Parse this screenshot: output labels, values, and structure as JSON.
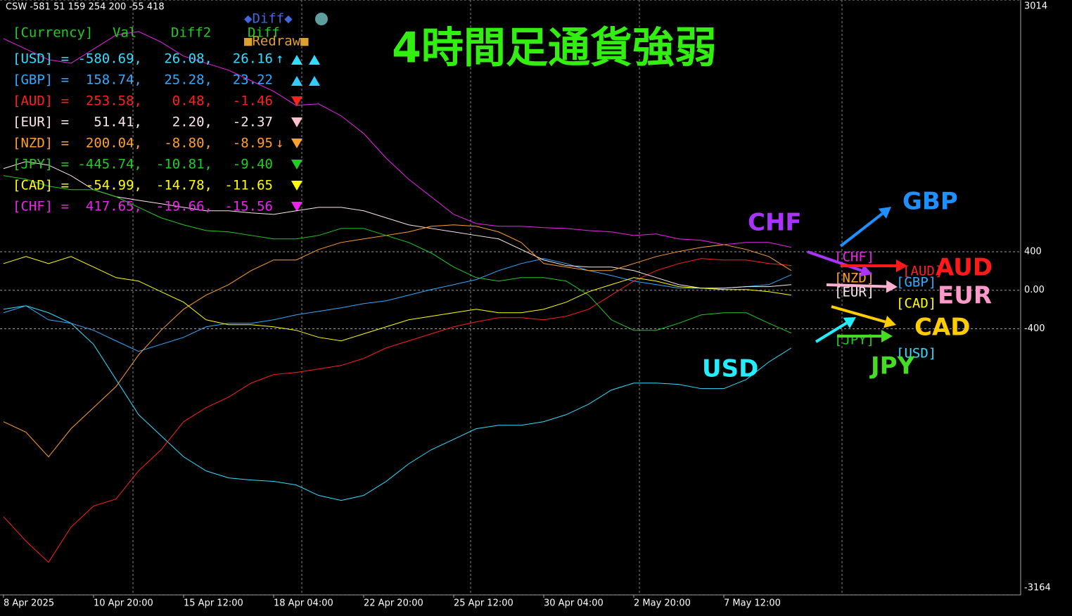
{
  "chart_data": {
    "type": "line",
    "info": "CSW -581 51 159 254 200 -55 418",
    "title": "4時間足通貨強弱",
    "buttons": {
      "diff": "◆Diff◆",
      "redraw": "■Redraw■"
    },
    "table": {
      "header": [
        "[Currency]",
        "Val",
        "Diff2",
        "Diff"
      ],
      "rows": [
        {
          "color": "#33ddff",
          "label": "[USD] =",
          "val": "-580.69,",
          "diff2": "26.08,",
          "diff": "26.16",
          "trend": "↑"
        },
        {
          "color": "#33aaff",
          "label": "[GBP] =",
          "val": "158.74,",
          "diff2": "25.28,",
          "diff": "23.22"
        },
        {
          "color": "#ff2020",
          "label": "[AUD] =",
          "val": "253.58,",
          "diff2": "0.48,",
          "diff": "-1.46"
        },
        {
          "color": "#ffe6ea",
          "label": "[EUR] =",
          "val": "51.41,",
          "diff2": "2.20,",
          "diff": "-2.37"
        },
        {
          "color": "#ff9f2f",
          "label": "[NZD] =",
          "val": "200.04,",
          "diff2": "-8.80,",
          "diff": "-8.95",
          "trend": "↓"
        },
        {
          "color": "#22cc22",
          "label": "[JPY] =",
          "val": "-445.74,",
          "diff2": "-10.81,",
          "diff": "-9.40"
        },
        {
          "color": "#ffff00",
          "label": "[CAD] =",
          "val": "-54.99,",
          "diff2": "-14.78,",
          "diff": "-11.65"
        },
        {
          "color": "#ee22ee",
          "label": "[CHF] =",
          "val": "417.65,",
          "diff2": "-19.66,",
          "diff": "-15.56"
        }
      ]
    },
    "categories": [
      "8 Apr 2025",
      null,
      null,
      null,
      "10 Apr 20:00",
      null,
      null,
      null,
      "15 Apr 12:00",
      null,
      null,
      null,
      "18 Apr 04:00",
      null,
      null,
      null,
      "22 Apr 20:00",
      null,
      null,
      null,
      "25 Apr 12:00",
      null,
      null,
      null,
      "30 Apr 04:00",
      null,
      null,
      null,
      "2 May 20:00",
      null,
      null,
      null,
      "7 May 12:00",
      null,
      null,
      null
    ],
    "ylim": [
      -3164,
      3014
    ],
    "yticks": [
      3014,
      400,
      {
        "value": 0,
        "label": "0.00"
      },
      -400,
      -3164
    ],
    "grid": true,
    "series": [
      {
        "name": "[USD]",
        "color": "#33ddff",
        "values": [
          -197,
          -161,
          -234,
          -343,
          -562,
          -927,
          -1292,
          -1511,
          -1730,
          -1876,
          -1949,
          -1971,
          -1985,
          -2022,
          -2131,
          -2183,
          -2131,
          -1985,
          -1803,
          -1657,
          -1548,
          -1438,
          -1402,
          -1402,
          -1365,
          -1292,
          -1183,
          -1037,
          -964,
          -964,
          -978,
          -1022,
          -1022,
          -927,
          -745,
          -599
        ]
      },
      {
        "name": "[GBP]",
        "color": "#33aaff",
        "values": [
          -234,
          -161,
          -307,
          -343,
          -416,
          -526,
          -635,
          -562,
          -489,
          -380,
          -343,
          -343,
          -307,
          -256,
          -219,
          -183,
          -139,
          -110,
          -51,
          7,
          58,
          110,
          204,
          277,
          329,
          277,
          204,
          153,
          95,
          58,
          22,
          22,
          22,
          37,
          58,
          161
        ]
      },
      {
        "name": "[AUD]",
        "color": "#ff2020",
        "values": [
          -2351,
          -2606,
          -2825,
          -2460,
          -2241,
          -2168,
          -1876,
          -1657,
          -1365,
          -1219,
          -1110,
          -964,
          -876,
          -854,
          -818,
          -781,
          -708,
          -599,
          -526,
          -453,
          -380,
          -329,
          -285,
          -285,
          -307,
          -270,
          -197,
          -51,
          95,
          204,
          277,
          329,
          314,
          314,
          277,
          256
        ]
      },
      {
        "name": "[EUR]",
        "color": "#ffe6ea",
        "values": [
          1263,
          1336,
          1299,
          1190,
          1044,
          971,
          934,
          898,
          861,
          825,
          825,
          803,
          788,
          825,
          861,
          861,
          825,
          752,
          679,
          642,
          606,
          569,
          533,
          423,
          314,
          256,
          241,
          241,
          204,
          131,
          58,
          22,
          22,
          37,
          37,
          58
        ]
      },
      {
        "name": "[NZD]",
        "color": "#ff9f2f",
        "values": [
          -1365,
          -1475,
          -1730,
          -1438,
          -1219,
          -1000,
          -672,
          -416,
          -197,
          -51,
          58,
          204,
          314,
          314,
          423,
          496,
          533,
          569,
          606,
          664,
          679,
          664,
          606,
          496,
          277,
          241,
          204,
          204,
          277,
          350,
          402,
          445,
          474,
          423,
          350,
          204
        ]
      },
      {
        "name": "[JPY]",
        "color": "#22cc22",
        "values": [
          1190,
          1153,
          1081,
          1044,
          1044,
          971,
          861,
          752,
          679,
          620,
          606,
          569,
          533,
          533,
          569,
          642,
          642,
          569,
          496,
          387,
          241,
          131,
          95,
          131,
          131,
          95,
          -51,
          -307,
          -416,
          -416,
          -343,
          -256,
          -234,
          -234,
          -343,
          -445
        ]
      },
      {
        "name": "[CAD]",
        "color": "#ffff00",
        "values": [
          277,
          350,
          277,
          350,
          241,
          131,
          95,
          -15,
          -124,
          -307,
          -358,
          -358,
          -380,
          -416,
          -489,
          -526,
          -453,
          -380,
          -307,
          -270,
          -234,
          -197,
          -234,
          -234,
          -197,
          -124,
          -15,
          58,
          131,
          95,
          37,
          22,
          7,
          7,
          -15,
          -51
        ]
      },
      {
        "name": "[CHF]",
        "color": "#ee22ee",
        "values": [
          2613,
          2504,
          2394,
          2358,
          2504,
          2650,
          2686,
          2577,
          2431,
          2358,
          2285,
          2176,
          2066,
          1920,
          1935,
          1811,
          1628,
          1372,
          1153,
          971,
          788,
          693,
          664,
          664,
          650,
          642,
          620,
          606,
          569,
          584,
          533,
          518,
          474,
          496,
          496,
          445
        ]
      }
    ],
    "annotations": [
      {
        "text": "CHF",
        "color": "#aa33ff"
      },
      {
        "text": "GBP",
        "color": "#1e90ff"
      },
      {
        "text": "AUD",
        "color": "#ff1a1a"
      },
      {
        "text": "EUR",
        "color": "#ff99cc"
      },
      {
        "text": "CAD",
        "color": "#ffcc00"
      },
      {
        "text": "JPY",
        "color": "#44dd22"
      },
      {
        "text": "USD",
        "color": "#22eeff"
      }
    ]
  }
}
